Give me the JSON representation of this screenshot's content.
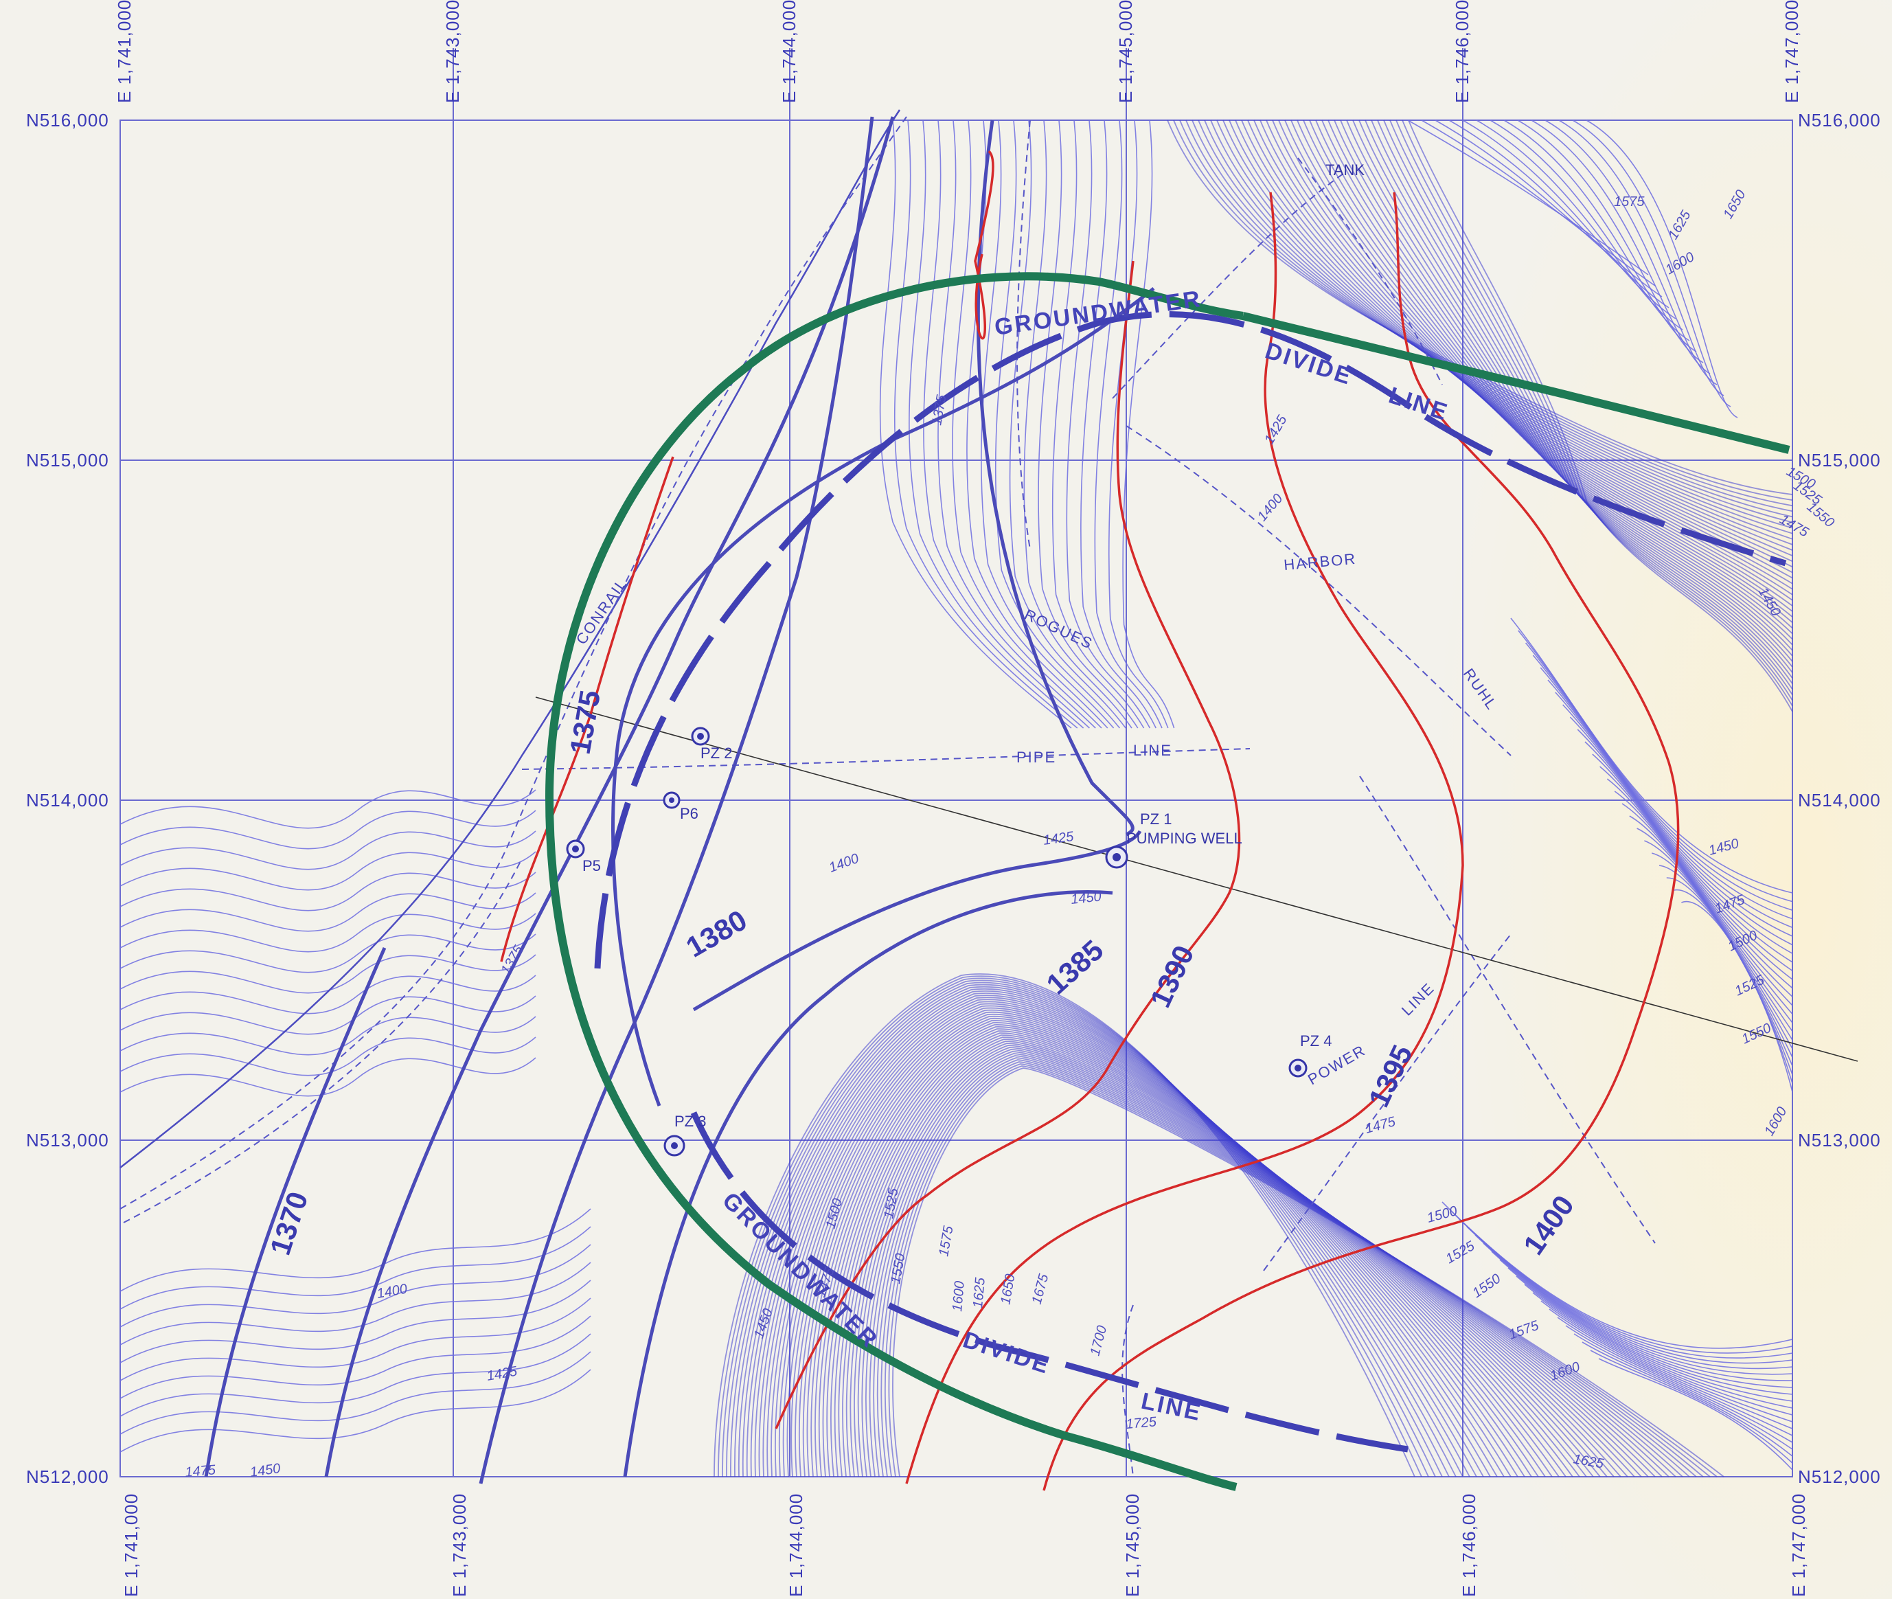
{
  "map": {
    "easting_labels": [
      "E 1,741,000",
      "E 1,743,000",
      "E 1,744,000",
      "E 1,745,000",
      "E 1,746,000",
      "E 1,747,000"
    ],
    "northing_labels": [
      "N516,000",
      "N515,000",
      "N514,000",
      "N513,000",
      "N512,000"
    ],
    "water_table_labels": [
      "1370",
      "1375",
      "1380",
      "1385",
      "1390",
      "1395",
      "1400"
    ],
    "features": {
      "groundwater_top": "GROUNDWATER",
      "divide_top": "DIVIDE",
      "line_top": "LINE",
      "groundwater_bottom": "GROUNDWATER",
      "divide_bottom": "DIVIDE",
      "line_bottom": "LINE",
      "conrail": "CONRAIL",
      "pipe": "PIPE",
      "pipe_line": "LINE",
      "rogues": "ROGUES",
      "harbor": "HARBOR",
      "ruhl": "RUHL",
      "tank": "TANK",
      "power": "POWER",
      "power_line": "LINE"
    },
    "topo_labels": [
      "1375",
      "1375",
      "1400",
      "1425",
      "1400",
      "1425",
      "1450",
      "1400",
      "1425",
      "1450",
      "1475",
      "1450",
      "1475",
      "1500",
      "1525",
      "1550",
      "1575",
      "1600",
      "1625",
      "1650",
      "1675",
      "1700",
      "1725",
      "1475",
      "1500",
      "1525",
      "1550",
      "1575",
      "1600",
      "1625",
      "1450",
      "1475",
      "1500",
      "1525",
      "1550",
      "1600",
      "1575",
      "1550",
      "1525",
      "1500",
      "1475",
      "1450",
      "1600",
      "1625",
      "1650"
    ],
    "wells": [
      {
        "id": "PZ 1",
        "note": "PUMPING WELL"
      },
      {
        "id": "PZ 2"
      },
      {
        "id": "PZ 3"
      },
      {
        "id": "PZ 4"
      },
      {
        "id": "P5"
      },
      {
        "id": "P6"
      }
    ],
    "colors": {
      "background": "#f3f2ec",
      "linework": "#4a4ab8",
      "water_table_highlight": "#d62a2a",
      "radius_of_influence": "#1e7a55"
    }
  }
}
